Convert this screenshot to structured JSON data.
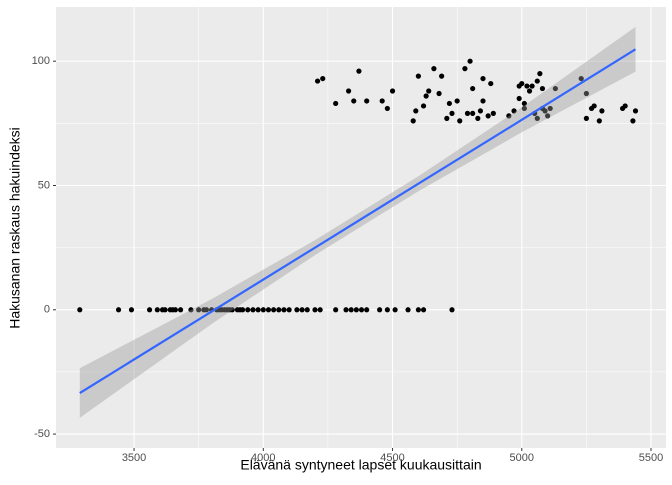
{
  "chart_data": {
    "type": "scatter",
    "x_label": "Elävänä syntyneet lapset kuukausittain",
    "y_label": "Hakusanan raskaus hakuindeksi",
    "xlim": [
      3198,
      5558
    ],
    "ylim": [
      -55.6,
      121.8
    ],
    "xticks": [
      3500,
      4000,
      4500,
      5000,
      5500
    ],
    "yticks": [
      -50,
      0,
      50,
      100
    ],
    "grid": true,
    "point_color": "#000000",
    "x": [
      3290,
      3440,
      3490,
      3560,
      3590,
      3610,
      3620,
      3640,
      3650,
      3660,
      3680,
      3720,
      3750,
      3770,
      3780,
      3800,
      3820,
      3830,
      3840,
      3850,
      3860,
      3870,
      3880,
      3900,
      3910,
      3920,
      3940,
      3960,
      3980,
      4000,
      4020,
      4040,
      4060,
      4080,
      4100,
      4130,
      4150,
      4170,
      4200,
      4220,
      4280,
      4320,
      4340,
      4360,
      4380,
      4400,
      4450,
      4480,
      4510,
      4560,
      4600,
      4620,
      4730,
      4210,
      4230,
      4280,
      4330,
      4350,
      4370,
      4400,
      4460,
      4480,
      4500,
      4580,
      4590,
      4600,
      4620,
      4630,
      4640,
      4660,
      4680,
      4690,
      4710,
      4720,
      4730,
      4750,
      4760,
      4780,
      4790,
      4800,
      4810,
      4810,
      4830,
      4840,
      4850,
      4850,
      4870,
      4880,
      4890,
      4950,
      4970,
      4990,
      4990,
      5000,
      5010,
      5010,
      5020,
      5030,
      5040,
      5050,
      5060,
      5060,
      5070,
      5080,
      5080,
      5090,
      5100,
      5110,
      5130,
      5230,
      5250,
      5250,
      5270,
      5280,
      5300,
      5310,
      5390,
      5400,
      5430,
      5440
    ],
    "y": [
      0,
      0,
      0,
      0,
      0,
      0,
      0,
      0,
      0,
      0,
      0,
      0,
      0,
      0,
      0,
      0,
      0,
      0,
      0,
      0,
      0,
      0,
      0,
      0,
      0,
      0,
      0,
      0,
      0,
      0,
      0,
      0,
      0,
      0,
      0,
      0,
      0,
      0,
      0,
      0,
      0,
      0,
      0,
      0,
      0,
      0,
      0,
      0,
      0,
      0,
      0,
      0,
      0,
      92,
      93,
      83,
      88,
      84,
      96,
      84,
      84,
      81,
      88,
      76,
      80,
      94,
      82,
      86,
      88,
      97,
      87,
      94,
      77,
      83,
      79,
      84,
      76,
      97,
      79,
      100,
      89,
      79,
      77,
      80,
      93,
      84,
      78,
      91,
      79,
      78,
      80,
      85,
      90,
      91,
      83,
      81,
      90,
      88,
      90,
      79,
      77,
      92,
      95,
      81,
      89,
      80,
      78,
      81,
      89,
      93,
      87,
      77,
      81,
      82,
      76,
      80,
      81,
      82,
      76,
      80
    ],
    "fit": {
      "color": "#3366FF",
      "band_color": "#999999",
      "x": [
        3290,
        3800,
        4200,
        4600,
        5000,
        5440
      ],
      "y": [
        -33.5,
        -0.7,
        25.0,
        50.7,
        76.4,
        104.8
      ],
      "ymin": [
        -43.5,
        -5.7,
        22.0,
        47.7,
        71.4,
        95.8
      ],
      "ymax": [
        -23.5,
        4.3,
        28.0,
        53.7,
        81.4,
        113.8
      ]
    }
  }
}
